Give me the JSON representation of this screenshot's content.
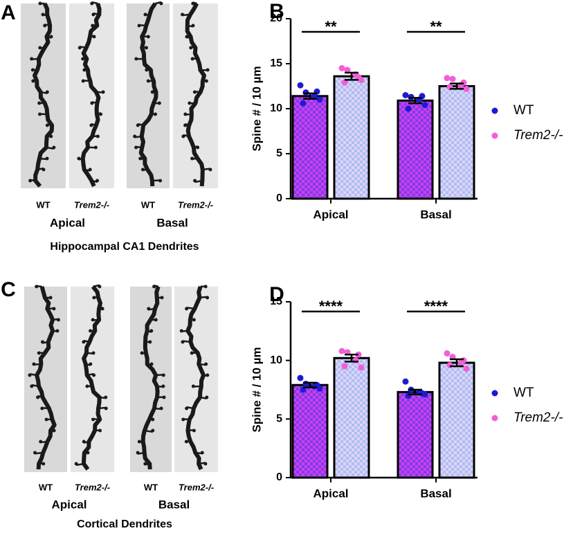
{
  "chart_data": [
    {
      "type": "bar",
      "panel": "B",
      "ylabel": "Spine # / 10 µm",
      "categories": [
        "Apical",
        "Basal"
      ],
      "ylim": [
        0,
        20
      ],
      "yticks": [
        0,
        5,
        10,
        15,
        20
      ],
      "significance": [
        "**",
        "**"
      ],
      "series": [
        {
          "name": "WT",
          "color": "#1c1cd2",
          "values": [
            11.4,
            10.9
          ],
          "errors": [
            0.3,
            0.3
          ],
          "points": [
            [
              12.6,
              11.8,
              11.4,
              11.0,
              10.6,
              11.9
            ],
            [
              11.5,
              11.3,
              11.0,
              10.4,
              10.0,
              11.4
            ]
          ]
        },
        {
          "name": "Trem2-/-",
          "color": "#f25ed8",
          "values": [
            13.6,
            12.5
          ],
          "errors": [
            0.4,
            0.3
          ],
          "points": [
            [
              14.5,
              14.3,
              13.8,
              13.2,
              12.9,
              13.5
            ],
            [
              13.4,
              13.3,
              12.6,
              12.2,
              12.4,
              12.9
            ]
          ]
        }
      ]
    },
    {
      "type": "bar",
      "panel": "D",
      "ylabel": "Spine # / 10 µm",
      "categories": [
        "Apical",
        "Basal"
      ],
      "ylim": [
        0,
        15
      ],
      "yticks": [
        0,
        5,
        10,
        15
      ],
      "significance": [
        "****",
        "****"
      ],
      "series": [
        {
          "name": "WT",
          "color": "#1c1cd2",
          "values": [
            7.9,
            7.3
          ],
          "errors": [
            0.2,
            0.2
          ],
          "points": [
            [
              8.5,
              8.0,
              7.8,
              7.6,
              7.5,
              7.9
            ],
            [
              8.2,
              7.5,
              7.3,
              7.1,
              7.0,
              7.2
            ]
          ]
        },
        {
          "name": "Trem2-/-",
          "color": "#f25ed8",
          "values": [
            10.2,
            9.8
          ],
          "errors": [
            0.3,
            0.3
          ],
          "points": [
            [
              10.8,
              10.7,
              10.0,
              9.4,
              9.5,
              10.5
            ],
            [
              10.6,
              10.3,
              9.8,
              9.3,
              9.6,
              10.0
            ]
          ]
        }
      ]
    }
  ],
  "image_panels": [
    {
      "panel": "A",
      "images": [
        "WT",
        "Trem2-/-",
        "WT",
        "Trem2-/-"
      ],
      "groups": [
        "Apical",
        "Basal"
      ],
      "caption": "Hippocampal CA1 Dendrites"
    },
    {
      "panel": "C",
      "images": [
        "WT",
        "Trem2-/-",
        "WT",
        "Trem2-/-"
      ],
      "groups": [
        "Apical",
        "Basal"
      ],
      "caption": "Cortical Dendrites"
    }
  ]
}
